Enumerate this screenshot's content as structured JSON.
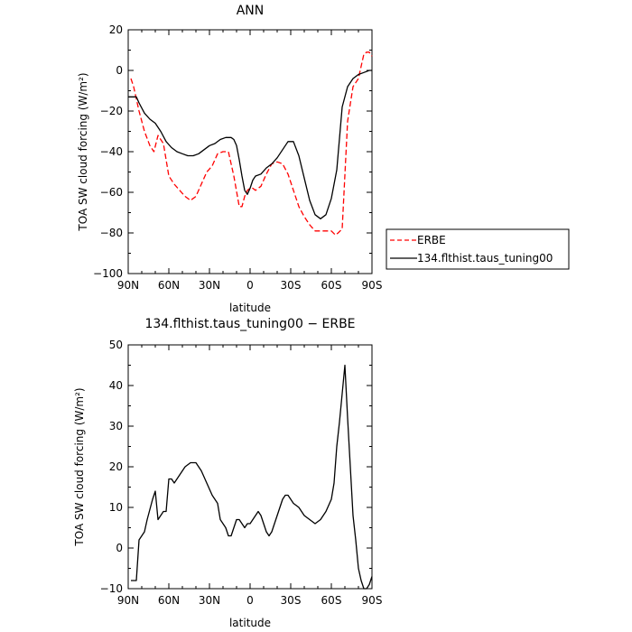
{
  "chart_data": [
    {
      "type": "line",
      "title": "ANN",
      "xlabel": "latitude",
      "ylabel": "TOA SW cloud forcing (W/m²)",
      "xlim": [
        90,
        -90
      ],
      "ylim": [
        -100,
        20
      ],
      "xticks": [
        90,
        60,
        30,
        0,
        -30,
        -60,
        -90
      ],
      "xticklabels": [
        "90N",
        "60N",
        "30N",
        "0",
        "30S",
        "60S",
        "90S"
      ],
      "yticks": [
        20,
        0,
        -20,
        -40,
        -60,
        -80,
        -100
      ],
      "yticklabels": [
        "20",
        "0",
        "−20",
        "−40",
        "−60",
        "−80",
        "−100"
      ],
      "legend_position": "right",
      "grid": false,
      "series": [
        {
          "name": "ERBE",
          "color": "#ff0000",
          "dash": "dashed",
          "x": [
            88,
            86,
            82,
            78,
            74,
            71,
            68,
            64,
            60,
            56,
            52,
            48,
            44,
            40,
            36,
            32,
            28,
            24,
            20,
            16,
            12,
            8,
            6,
            4,
            2,
            0,
            -2,
            -4,
            -8,
            -12,
            -16,
            -20,
            -24,
            -28,
            -32,
            -36,
            -40,
            -44,
            -48,
            -52,
            -56,
            -60,
            -63,
            -65,
            -68,
            -72,
            -76,
            -80,
            -82,
            -84,
            -86,
            -88,
            -90
          ],
          "y": [
            -4,
            -8,
            -20,
            -30,
            -37,
            -40,
            -32,
            -36,
            -52,
            -56,
            -59,
            -62,
            -64,
            -62,
            -56,
            -50,
            -47,
            -41,
            -40,
            -40,
            -52,
            -67,
            -67,
            -62,
            -59,
            -58,
            -58,
            -59,
            -57,
            -51,
            -46,
            -45,
            -46,
            -51,
            -59,
            -67,
            -72,
            -76,
            -79,
            -79,
            -79,
            -79,
            -81,
            -80,
            -78,
            -25,
            -8,
            -4,
            2,
            8,
            9,
            9,
            7
          ]
        },
        {
          "name": "134.flthist.taus_tuning00",
          "color": "#000000",
          "dash": "solid",
          "x": [
            90,
            86,
            84,
            82,
            78,
            74,
            70,
            66,
            62,
            58,
            54,
            50,
            46,
            42,
            38,
            34,
            30,
            26,
            22,
            18,
            14,
            12,
            10,
            8,
            6,
            4,
            2,
            0,
            -2,
            -4,
            -8,
            -12,
            -16,
            -20,
            -24,
            -28,
            -32,
            -36,
            -40,
            -44,
            -48,
            -52,
            -56,
            -60,
            -64,
            -68,
            -72,
            -76,
            -80,
            -84,
            -88,
            -90
          ],
          "y": [
            -13,
            -13,
            -13,
            -16,
            -21,
            -24,
            -26,
            -30,
            -35,
            -38,
            -40,
            -41,
            -42,
            -42,
            -41,
            -39,
            -37,
            -36,
            -34,
            -33,
            -33,
            -34,
            -37,
            -44,
            -52,
            -59,
            -61,
            -58,
            -54,
            -52,
            -51,
            -48,
            -46,
            -43,
            -39,
            -35,
            -35,
            -42,
            -53,
            -64,
            -71,
            -73,
            -71,
            -63,
            -49,
            -18,
            -8,
            -4,
            -2,
            -1,
            0,
            0
          ]
        }
      ]
    },
    {
      "type": "line",
      "title": "134.flthist.taus_tuning00 − ERBE",
      "xlabel": "latitude",
      "ylabel": "TOA SW cloud forcing (W/m²)",
      "xlim": [
        90,
        -90
      ],
      "ylim": [
        -10,
        50
      ],
      "xticks": [
        90,
        60,
        30,
        0,
        -30,
        -60,
        -90
      ],
      "xticklabels": [
        "90N",
        "60N",
        "30N",
        "0",
        "30S",
        "60S",
        "90S"
      ],
      "yticks": [
        50,
        40,
        30,
        20,
        10,
        0,
        -10
      ],
      "yticklabels": [
        "50",
        "40",
        "30",
        "20",
        "10",
        "0",
        "−10"
      ],
      "grid": false,
      "series": [
        {
          "color": "#000000",
          "dash": "solid",
          "x": [
            88,
            84,
            82,
            78,
            76,
            72,
            70,
            68,
            66,
            64,
            62,
            60,
            58,
            56,
            52,
            48,
            44,
            40,
            36,
            32,
            28,
            24,
            22,
            20,
            18,
            16,
            14,
            10,
            8,
            4,
            2,
            0,
            -2,
            -4,
            -6,
            -8,
            -10,
            -12,
            -14,
            -16,
            -18,
            -20,
            -22,
            -24,
            -26,
            -28,
            -30,
            -32,
            -36,
            -40,
            -44,
            -48,
            -52,
            -56,
            -60,
            -62,
            -64,
            -66,
            -68,
            -70,
            -72,
            -74,
            -76,
            -78,
            -80,
            -82,
            -84,
            -86,
            -88,
            -90
          ],
          "y": [
            -8,
            -8,
            2,
            4,
            7,
            12,
            14,
            7,
            8,
            9,
            9,
            17,
            17,
            16,
            18,
            20,
            21,
            21,
            19,
            16,
            13,
            11,
            7,
            6,
            5,
            3,
            3,
            7,
            7,
            5,
            6,
            6,
            7,
            8,
            9,
            8,
            6,
            4,
            3,
            4,
            6,
            8,
            10,
            12,
            13,
            13,
            12,
            11,
            10,
            8,
            7,
            6,
            7,
            9,
            12,
            16,
            25,
            31,
            38,
            45,
            32,
            20,
            8,
            2,
            -5,
            -8,
            -10,
            -10,
            -9,
            -7
          ]
        }
      ]
    }
  ]
}
